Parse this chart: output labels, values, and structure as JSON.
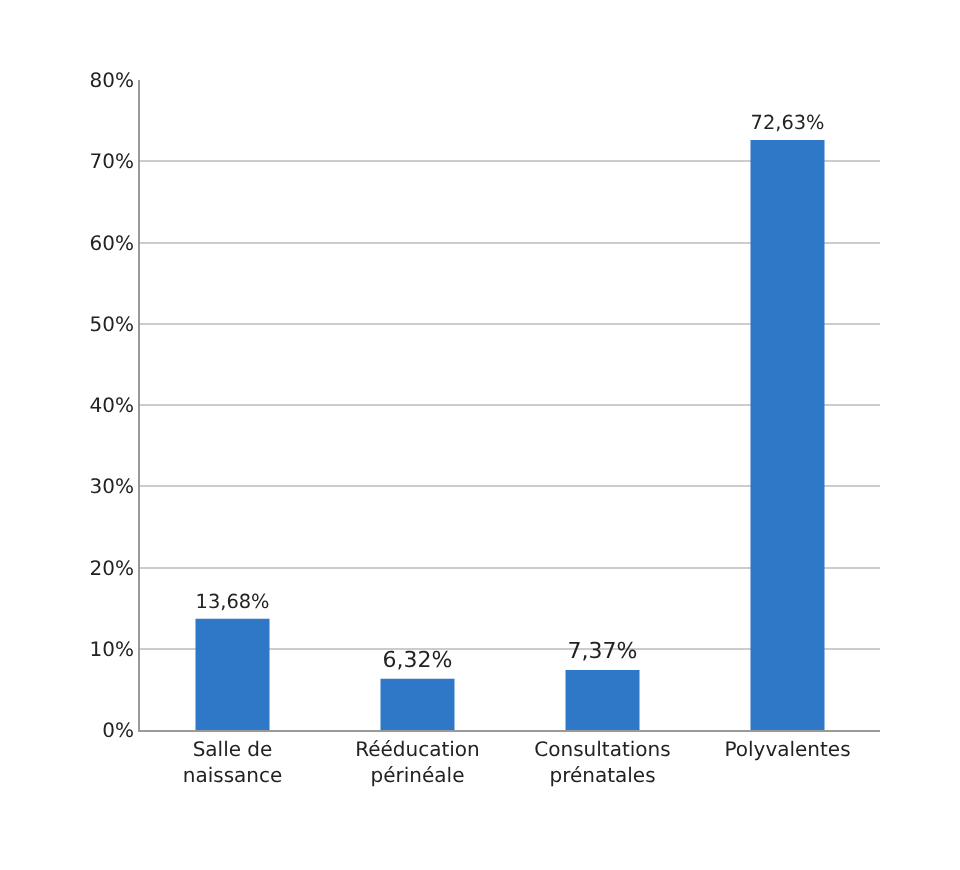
{
  "chart_data": {
    "type": "bar",
    "categories": [
      "Salle de\nnaissance",
      "Rééducation\npérinéale",
      "Consultations\nprénatales",
      "Polyvalentes"
    ],
    "values": [
      13.68,
      6.32,
      7.37,
      72.63
    ],
    "value_labels": [
      "13,68%",
      "6,32%",
      "7,37%",
      "72,63%"
    ],
    "color": "#2f78c8",
    "ylim": [
      0,
      80
    ],
    "yticks": [
      {
        "value": 0,
        "label": "0%"
      },
      {
        "value": 10,
        "label": "10%"
      },
      {
        "value": 20,
        "label": "20%"
      },
      {
        "value": 30,
        "label": "30%"
      },
      {
        "value": 40,
        "label": "40%"
      },
      {
        "value": 50,
        "label": "50%"
      },
      {
        "value": 60,
        "label": "60%"
      },
      {
        "value": 70,
        "label": "70%"
      },
      {
        "value": 80,
        "label": "80%"
      }
    ],
    "grid": "y",
    "legend": false
  }
}
